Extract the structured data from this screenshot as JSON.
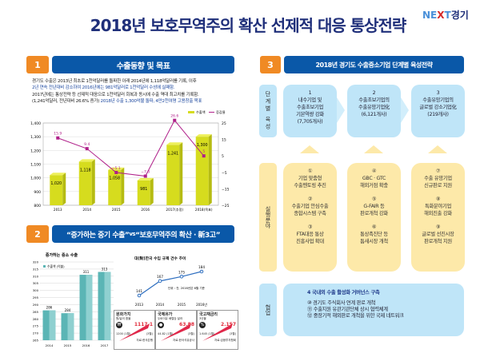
{
  "title": "2018년 보호무역주의 확산 선제적 대응 통상전략",
  "logo": {
    "a": "NE",
    "b": "X",
    "c": "T",
    "d": "경기"
  },
  "s1": {
    "num": "1",
    "title": "수출동향 및 목표",
    "p1a": "경기도 수출은 2013년 최초로 1천억달러를 돌파한 이래 2014년에 1,118억달러를 기록, 이후",
    "p1b": "2년 연속 전년대비 감소하여 2016년에는 981억달러로 1천억달러 수성에 실패함.",
    "p2a": "2017년에는 통상전략 등 선제적 대응으로 1천억달러 회복과 동시에 수출 역대 최고치를 기록함.",
    "p2b": "(1,241억달러, 전년대비 26.6% 증가)",
    "p2c": " 2018년 수출 1,300억불 돌파, 4만2천여명 고용창출 목표"
  },
  "chart_data": [
    {
      "type": "bar+line",
      "categories": [
        "2013",
        "2014",
        "2015",
        "2016",
        "2017(추정)",
        "2018(목표)"
      ],
      "series": [
        {
          "name": "수출액",
          "type": "bar",
          "axis": "left",
          "values": [
            1020,
            1118,
            1058,
            981,
            1241,
            1300
          ],
          "labels": [
            "1,020",
            "1,118",
            "1,058",
            "981",
            "1,241",
            "1,300"
          ]
        },
        {
          "name": "증감율",
          "type": "line",
          "axis": "right",
          "values": [
            15.9,
            9.4,
            -5.1,
            -7.3,
            26.6,
            5
          ],
          "labels": [
            "15.9",
            "9.4",
            "−5.1",
            "−7.3",
            "26.6",
            "5"
          ]
        }
      ],
      "ylim": [
        800,
        1400
      ],
      "yticks": [
        "800",
        "900",
        "1,000",
        "1,100",
        "1,200",
        "1,300",
        "1,400"
      ],
      "y2lim": [
        -25,
        25
      ],
      "y2ticks": [
        "25",
        "15",
        "5",
        "−5",
        "−15",
        "−25"
      ],
      "legend": "top-right",
      "grid": true,
      "colors": {
        "bar": "#d6dc1e",
        "line": "#b0208a"
      }
    },
    {
      "type": "bar",
      "title": "증가하는 중소 수출",
      "categories": [
        "2014",
        "2015",
        "2016",
        "2017"
      ],
      "series": [
        {
          "name": "수출액 (억불)",
          "values": [
            286,
            284,
            311,
            313
          ]
        }
      ],
      "ylim": [
        265,
        320
      ],
      "yticks": [
        "265",
        "270",
        "275",
        "280",
        "285",
        "290",
        "295",
        "300",
        "305",
        "310",
        "315",
        "320"
      ],
      "grid": true,
      "colors": {
        "bar": "#5bb5b5"
      }
    },
    {
      "type": "line",
      "title": "대(對)한국 수입 규제 건수 추이",
      "categories": [
        "2013",
        "2014",
        "2015",
        "2016년"
      ],
      "series": [
        {
          "values": [
            141,
            167,
            175,
            184
          ]
        }
      ],
      "note": "단위 : 건, 2016년은 6월 기준",
      "colors": {
        "line": "#2f6fc0"
      }
    }
  ],
  "s2": {
    "num": "2",
    "title_a": "“증가하는 중기 수출”",
    "vs": " vs ",
    "title_b": "“보호무역주의 확산 · 新3고”",
    "boxes": [
      {
        "name": "원화가치",
        "sub": "원/달러 환율",
        "value": "1117.1",
        "start": "1200 (1월)",
        "end": "(3월)",
        "src": "자료:한국은행",
        "icon": "₩"
      },
      {
        "name": "국제유가",
        "sub": "두바이유 배럴당 달러",
        "value": "63.88",
        "start": "44.82 (1월)",
        "end": "(3월)",
        "src": "자료:한국석유공사",
        "icon": "●"
      },
      {
        "name": "국고채금리",
        "sub": "3년물",
        "value": "2.157",
        "start": "1.645 (1월)",
        "end": "(3월)",
        "src": "자료:금융투자협회",
        "icon": "%"
      }
    ]
  },
  "s3": {
    "num": "3",
    "title": "2018년 경기도 수출중소기업 단계별 육성전략",
    "stage_label": "단계별 육성",
    "exec_label": "실행분야",
    "coop_label": "협업",
    "stages": [
      {
        "n": "1",
        "l1": "내수기업 및",
        "l2": "수출초보기업",
        "l3": "기본역량 강화",
        "l4": "(7,705개사)"
      },
      {
        "n": "2",
        "l1": "수출초보기업의",
        "l2": "수출유망기업化",
        "l3": "(6,121개사)",
        "l4": ""
      },
      {
        "n": "3",
        "l1": "수출유망기업의",
        "l2": "글로벌 강소기업化",
        "l3": "(219개사)",
        "l4": ""
      }
    ],
    "exec": [
      [
        {
          "n": "①",
          "a": "기업 맞춤형",
          "b": "수출멘토링 추진"
        },
        {
          "n": "②",
          "a": "수출기업 안심수출",
          "b": "종합시스템 구축"
        },
        {
          "n": "③",
          "a": "FTA대응 통상",
          "b": "진흥사업 확대"
        }
      ],
      [
        {
          "n": "④",
          "a": "GBC · GTC",
          "b": "해외거점 확충"
        },
        {
          "n": "⑤",
          "a": "G-FAIR 등",
          "b": "판로개척 강화"
        },
        {
          "n": "⑥",
          "a": "통상촉진단 등",
          "b": "틈새시장 개척"
        }
      ],
      [
        {
          "n": "⑦",
          "a": "수출 유망기업",
          "b": "신규판로 지원"
        },
        {
          "n": "⑧",
          "a": "특화분야기업",
          "b": "해외진출 강화"
        },
        {
          "n": "⑨",
          "a": "글로벌 선진시장",
          "b": "판로개척 지원"
        }
      ]
    ],
    "coop": {
      "title": "4 국내외 수출 활성화 거버넌스 구축",
      "items": [
        "⑩ 경기도 주식회사 연계 판로 개척",
        "⑪ 수출지원 유관기관단체 상시 협력체계",
        "⑫ 중장기적 해외판로 개척을 위한 국제 네트워크"
      ]
    }
  }
}
